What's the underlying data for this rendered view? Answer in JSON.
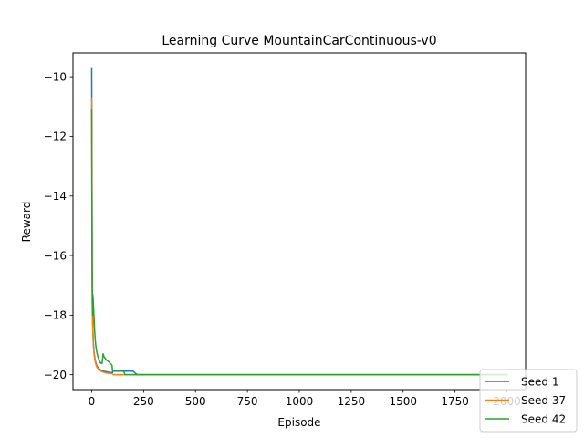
{
  "chart_data": {
    "type": "line",
    "title": "Learning Curve MountainCarContinuous-v0",
    "xlabel": "Episode",
    "ylabel": "Reward",
    "xlim": [
      -90,
      2090
    ],
    "ylim": [
      -20.5,
      -9.2
    ],
    "xticks": [
      0,
      250,
      500,
      750,
      1000,
      1250,
      1500,
      1750,
      2000
    ],
    "xtick_labels": [
      "0",
      "250",
      "500",
      "750",
      "1000",
      "1250",
      "1500",
      "1750",
      "2000"
    ],
    "yticks": [
      -10,
      -12,
      -14,
      -16,
      -18,
      -20
    ],
    "ytick_labels": [
      "−10",
      "−12",
      "−14",
      "−16",
      "−18",
      "−20"
    ],
    "grid": false,
    "legend_position": "bottom-right",
    "series": [
      {
        "name": "Seed 1",
        "color": "#1f77b4",
        "x": [
          0,
          1,
          2,
          3,
          5,
          8,
          12,
          18,
          25,
          35,
          50,
          70,
          90,
          100,
          101,
          150,
          200,
          205,
          220,
          2000
        ],
        "y": [
          -9.7,
          -12.0,
          -15.0,
          -17.0,
          -18.3,
          -18.9,
          -19.3,
          -19.55,
          -19.7,
          -19.8,
          -19.87,
          -19.9,
          -19.93,
          -19.93,
          -19.88,
          -19.88,
          -19.88,
          -19.92,
          -20.0,
          -20.0
        ]
      },
      {
        "name": "Seed 37",
        "color": "#ff7f0e",
        "x": [
          0,
          1,
          2,
          3,
          5,
          8,
          12,
          18,
          25,
          35,
          50,
          70,
          90,
          100,
          105,
          2000
        ],
        "y": [
          -10.7,
          -13.0,
          -16.0,
          -17.5,
          -18.4,
          -19.0,
          -19.35,
          -19.6,
          -19.75,
          -19.83,
          -19.9,
          -19.94,
          -19.96,
          -19.97,
          -20.0,
          -20.0
        ]
      },
      {
        "name": "Seed 42",
        "color": "#2ca02c",
        "x": [
          0,
          1,
          2,
          3,
          4,
          5,
          7,
          10,
          14,
          18,
          22,
          28,
          35,
          42,
          50,
          55,
          60,
          65,
          70,
          80,
          90,
          98,
          100,
          102,
          140,
          150,
          155,
          160,
          2000
        ],
        "y": [
          -11.1,
          -14.6,
          -16.5,
          -17.6,
          -18.0,
          -17.3,
          -17.45,
          -17.9,
          -18.5,
          -18.9,
          -19.15,
          -19.35,
          -19.5,
          -19.6,
          -19.62,
          -19.3,
          -19.4,
          -19.45,
          -19.5,
          -19.55,
          -19.62,
          -19.68,
          -19.85,
          -19.85,
          -19.85,
          -19.85,
          -19.9,
          -20.0,
          -20.0
        ]
      }
    ]
  }
}
